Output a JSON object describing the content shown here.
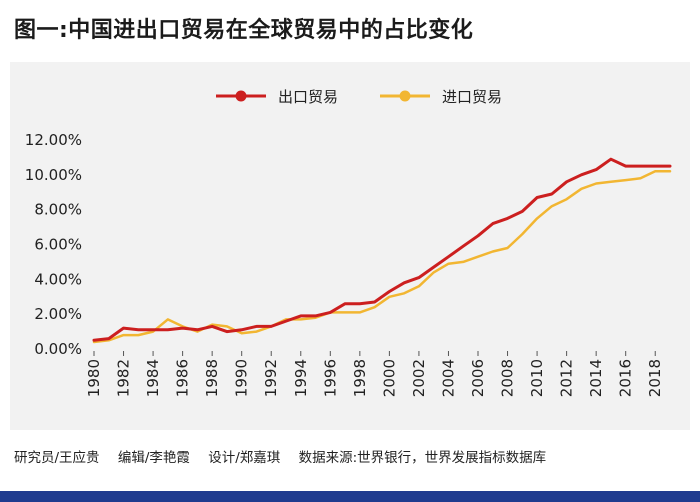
{
  "title": "图一:中国进出口贸易在全球贸易中的占比变化",
  "footer": {
    "researcher": "研究员/王应贵",
    "editor": "编辑/李艳霞",
    "designer": "设计/郑嘉琪",
    "source": "数据来源:世界银行，世界发展指标数据库"
  },
  "colors": {
    "export": "#cc1f1f",
    "import": "#f2b632",
    "panel": "#f2f2f2",
    "bar": "#1f3b8f"
  },
  "chart_data": {
    "type": "line",
    "x": [
      1980,
      1981,
      1982,
      1983,
      1984,
      1985,
      1986,
      1987,
      1988,
      1989,
      1990,
      1991,
      1992,
      1993,
      1994,
      1995,
      1996,
      1997,
      1998,
      1999,
      2000,
      2001,
      2002,
      2003,
      2004,
      2005,
      2006,
      2007,
      2008,
      2009,
      2010,
      2011,
      2012,
      2013,
      2014,
      2015,
      2016,
      2017,
      2018,
      2019
    ],
    "x_tick_labels": [
      "1980",
      "1982",
      "1984",
      "1986",
      "1988",
      "1990",
      "1992",
      "1994",
      "1996",
      "1998",
      "2000",
      "2002",
      "2004",
      "2006",
      "2008",
      "2010",
      "2012",
      "2014",
      "2016",
      "2018"
    ],
    "y_tick_labels": [
      "0.00%",
      "2.00%",
      "4.00%",
      "6.00%",
      "8.00%",
      "10.00%",
      "12.00%"
    ],
    "ylim": [
      0,
      12
    ],
    "series": [
      {
        "name": "出口贸易",
        "color": "#cc1f1f",
        "values": [
          0.5,
          0.6,
          1.2,
          1.1,
          1.1,
          1.1,
          1.2,
          1.1,
          1.3,
          1.0,
          1.1,
          1.3,
          1.3,
          1.6,
          1.9,
          1.9,
          2.1,
          2.6,
          2.6,
          2.7,
          3.3,
          3.8,
          4.1,
          4.7,
          5.3,
          5.9,
          6.5,
          7.2,
          7.5,
          7.9,
          8.7,
          8.9,
          9.6,
          10.0,
          10.3,
          10.9,
          10.5,
          10.5,
          10.5,
          10.5
        ]
      },
      {
        "name": "进口贸易",
        "color": "#f2b632",
        "values": [
          0.4,
          0.5,
          0.8,
          0.8,
          1.0,
          1.7,
          1.3,
          1.0,
          1.4,
          1.3,
          0.9,
          1.0,
          1.3,
          1.7,
          1.7,
          1.8,
          2.1,
          2.1,
          2.1,
          2.4,
          3.0,
          3.2,
          3.6,
          4.4,
          4.9,
          5.0,
          5.3,
          5.6,
          5.8,
          6.6,
          7.5,
          8.2,
          8.6,
          9.2,
          9.5,
          9.6,
          9.7,
          9.8,
          10.2,
          10.2
        ]
      }
    ],
    "legend_position": "top-center",
    "grid": false
  }
}
